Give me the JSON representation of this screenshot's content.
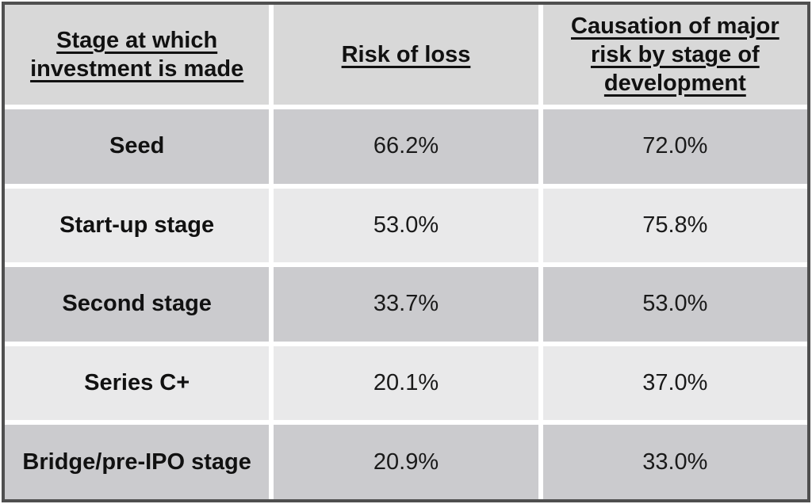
{
  "table": {
    "headers": {
      "stage": "Stage at which investment is made",
      "risk": "Risk of loss",
      "causation": "Causation of major risk by stage of development"
    },
    "rows": [
      {
        "stage": "Seed",
        "risk": "66.2%",
        "causation": "72.0%"
      },
      {
        "stage": "Start-up stage",
        "risk": "53.0%",
        "causation": "75.8%"
      },
      {
        "stage": "Second stage",
        "risk": "33.7%",
        "causation": "53.0%"
      },
      {
        "stage": "Series C+",
        "risk": "20.1%",
        "causation": "37.0%"
      },
      {
        "stage": "Bridge/pre-IPO stage",
        "risk": "20.9%",
        "causation": "33.0%"
      }
    ]
  },
  "chart_data": {
    "type": "table",
    "columns": [
      "Stage at which investment is made",
      "Risk of loss",
      "Causation of major risk by stage of development"
    ],
    "rows": [
      [
        "Seed",
        "66.2%",
        "72.0%"
      ],
      [
        "Start-up stage",
        "53.0%",
        "75.8%"
      ],
      [
        "Second stage",
        "33.7%",
        "53.0%"
      ],
      [
        "Series C+",
        "20.1%",
        "37.0%"
      ],
      [
        "Bridge/pre-IPO stage",
        "20.9%",
        "33.0%"
      ]
    ],
    "risk_of_loss_pct": [
      66.2,
      53.0,
      33.7,
      20.1,
      20.9
    ],
    "causation_of_major_risk_pct": [
      72.0,
      75.8,
      53.0,
      37.0,
      33.0
    ],
    "title": "",
    "notes": "Header row light gray; data rows alternate dark/light gray; white gaps between cells; dark outer border"
  },
  "colors": {
    "header_bg": "#d8d8d8",
    "row_dark_bg": "#cbcbce",
    "row_light_bg": "#e9e9ea",
    "separator": "#ffffff",
    "border": "#4f4f4f",
    "text": "#111111"
  }
}
